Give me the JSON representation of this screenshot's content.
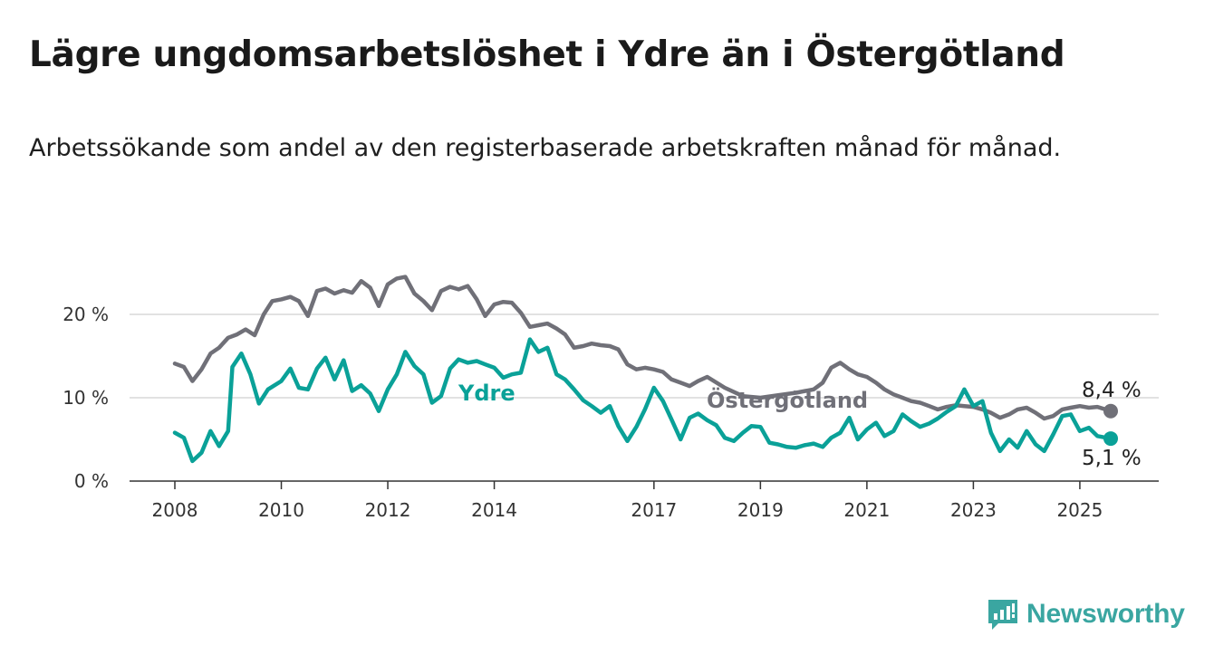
{
  "header": {
    "title": "Lägre ungdomsarbetslöshet i Ydre än i Östergötland",
    "subtitle": "Arbetssökande som andel av den registerbaserade arbetskraften månad för månad."
  },
  "brand": {
    "name": "Newsworthy",
    "color": "#3aa6a1",
    "icon": "newsworthy-logo-icon"
  },
  "colors": {
    "ydre": "#0aa198",
    "ostergotland": "#707078",
    "grid": "#d9d9d9",
    "axis": "#333333"
  },
  "chart_data": {
    "type": "line",
    "title": "Lägre ungdomsarbetslöshet i Ydre än i Östergötland",
    "subtitle": "Arbetssökande som andel av den registerbaserade arbetskraften månad för månad.",
    "xlabel": "",
    "ylabel": "",
    "x_range": [
      2008.0,
      2025.58
    ],
    "ylim": [
      0,
      24
    ],
    "y_ticks": [
      0,
      10,
      20
    ],
    "y_tick_labels": [
      "0 %",
      "10 %",
      "20 %"
    ],
    "x_ticks": [
      2008,
      2010,
      2012,
      2014,
      2017,
      2019,
      2021,
      2023,
      2025
    ],
    "x_tick_labels": [
      "2008",
      "2010",
      "2012",
      "2014",
      "2017",
      "2019",
      "2021",
      "2023",
      "2025"
    ],
    "grid": "horizontal",
    "legend": "direct labels on lines",
    "series": [
      {
        "name": "Östergötland",
        "color": "#707078",
        "end_label": "8,4 %",
        "points": [
          [
            2008.0,
            14.1
          ],
          [
            2008.17,
            13.7
          ],
          [
            2008.33,
            12.0
          ],
          [
            2008.5,
            13.4
          ],
          [
            2008.67,
            15.3
          ],
          [
            2008.83,
            16.0
          ],
          [
            2009.0,
            17.2
          ],
          [
            2009.17,
            17.6
          ],
          [
            2009.33,
            18.2
          ],
          [
            2009.5,
            17.5
          ],
          [
            2009.67,
            20.0
          ],
          [
            2009.83,
            21.6
          ],
          [
            2010.0,
            21.8
          ],
          [
            2010.17,
            22.1
          ],
          [
            2010.33,
            21.6
          ],
          [
            2010.5,
            19.8
          ],
          [
            2010.67,
            22.8
          ],
          [
            2010.83,
            23.1
          ],
          [
            2011.0,
            22.5
          ],
          [
            2011.17,
            22.9
          ],
          [
            2011.33,
            22.6
          ],
          [
            2011.5,
            24.0
          ],
          [
            2011.67,
            23.2
          ],
          [
            2011.83,
            21.0
          ],
          [
            2012.0,
            23.6
          ],
          [
            2012.17,
            24.3
          ],
          [
            2012.33,
            24.5
          ],
          [
            2012.5,
            22.5
          ],
          [
            2012.67,
            21.6
          ],
          [
            2012.83,
            20.5
          ],
          [
            2013.0,
            22.8
          ],
          [
            2013.17,
            23.3
          ],
          [
            2013.33,
            23.0
          ],
          [
            2013.5,
            23.4
          ],
          [
            2013.67,
            21.8
          ],
          [
            2013.83,
            19.8
          ],
          [
            2014.0,
            21.2
          ],
          [
            2014.17,
            21.5
          ],
          [
            2014.33,
            21.4
          ],
          [
            2014.5,
            20.2
          ],
          [
            2014.67,
            18.5
          ],
          [
            2014.83,
            18.7
          ],
          [
            2015.0,
            18.9
          ],
          [
            2015.17,
            18.3
          ],
          [
            2015.33,
            17.6
          ],
          [
            2015.5,
            16.0
          ],
          [
            2015.67,
            16.2
          ],
          [
            2015.83,
            16.5
          ],
          [
            2016.0,
            16.3
          ],
          [
            2016.17,
            16.2
          ],
          [
            2016.33,
            15.8
          ],
          [
            2016.5,
            14.0
          ],
          [
            2016.67,
            13.4
          ],
          [
            2016.83,
            13.6
          ],
          [
            2017.0,
            13.4
          ],
          [
            2017.17,
            13.1
          ],
          [
            2017.33,
            12.2
          ],
          [
            2017.5,
            11.8
          ],
          [
            2017.67,
            11.4
          ],
          [
            2017.83,
            12.0
          ],
          [
            2018.0,
            12.5
          ],
          [
            2018.33,
            11.2
          ],
          [
            2018.67,
            10.2
          ],
          [
            2019.0,
            10.0
          ],
          [
            2019.33,
            10.3
          ],
          [
            2019.67,
            10.6
          ],
          [
            2020.0,
            11.0
          ],
          [
            2020.17,
            11.8
          ],
          [
            2020.33,
            13.6
          ],
          [
            2020.5,
            14.2
          ],
          [
            2020.67,
            13.4
          ],
          [
            2020.83,
            12.8
          ],
          [
            2021.0,
            12.5
          ],
          [
            2021.17,
            11.8
          ],
          [
            2021.33,
            11.0
          ],
          [
            2021.5,
            10.4
          ],
          [
            2021.67,
            10.0
          ],
          [
            2021.83,
            9.6
          ],
          [
            2022.0,
            9.4
          ],
          [
            2022.17,
            9.0
          ],
          [
            2022.33,
            8.6
          ],
          [
            2022.5,
            8.9
          ],
          [
            2022.67,
            9.1
          ],
          [
            2022.83,
            9.0
          ],
          [
            2023.0,
            8.9
          ],
          [
            2023.17,
            8.6
          ],
          [
            2023.33,
            8.2
          ],
          [
            2023.5,
            7.6
          ],
          [
            2023.67,
            8.0
          ],
          [
            2023.83,
            8.6
          ],
          [
            2024.0,
            8.8
          ],
          [
            2024.17,
            8.2
          ],
          [
            2024.33,
            7.5
          ],
          [
            2024.5,
            7.8
          ],
          [
            2024.67,
            8.6
          ],
          [
            2024.83,
            8.8
          ],
          [
            2025.0,
            9.0
          ],
          [
            2025.17,
            8.8
          ],
          [
            2025.33,
            8.9
          ],
          [
            2025.58,
            8.4
          ]
        ]
      },
      {
        "name": "Ydre",
        "color": "#0aa198",
        "end_label": "5,1 %",
        "points": [
          [
            2008.0,
            5.8
          ],
          [
            2008.17,
            5.2
          ],
          [
            2008.33,
            2.4
          ],
          [
            2008.5,
            3.4
          ],
          [
            2008.67,
            6.0
          ],
          [
            2008.83,
            4.2
          ],
          [
            2009.0,
            6.0
          ],
          [
            2009.08,
            13.7
          ],
          [
            2009.25,
            15.3
          ],
          [
            2009.42,
            12.8
          ],
          [
            2009.58,
            9.3
          ],
          [
            2009.75,
            11.0
          ],
          [
            2010.0,
            12.0
          ],
          [
            2010.17,
            13.5
          ],
          [
            2010.33,
            11.2
          ],
          [
            2010.5,
            11.0
          ],
          [
            2010.67,
            13.5
          ],
          [
            2010.83,
            14.8
          ],
          [
            2011.0,
            12.2
          ],
          [
            2011.17,
            14.5
          ],
          [
            2011.33,
            10.8
          ],
          [
            2011.5,
            11.5
          ],
          [
            2011.67,
            10.5
          ],
          [
            2011.83,
            8.4
          ],
          [
            2012.0,
            11.0
          ],
          [
            2012.17,
            12.8
          ],
          [
            2012.33,
            15.5
          ],
          [
            2012.5,
            13.8
          ],
          [
            2012.67,
            12.8
          ],
          [
            2012.83,
            9.4
          ],
          [
            2013.0,
            10.2
          ],
          [
            2013.17,
            13.5
          ],
          [
            2013.33,
            14.6
          ],
          [
            2013.5,
            14.2
          ],
          [
            2013.67,
            14.4
          ],
          [
            2013.83,
            14.0
          ],
          [
            2014.0,
            13.6
          ],
          [
            2014.17,
            12.4
          ],
          [
            2014.33,
            12.8
          ],
          [
            2014.5,
            13.0
          ],
          [
            2014.67,
            17.0
          ],
          [
            2014.83,
            15.5
          ],
          [
            2015.0,
            16.0
          ],
          [
            2015.17,
            12.8
          ],
          [
            2015.33,
            12.2
          ],
          [
            2015.5,
            11.0
          ],
          [
            2015.67,
            9.7
          ],
          [
            2015.83,
            9.0
          ],
          [
            2016.0,
            8.2
          ],
          [
            2016.17,
            9.0
          ],
          [
            2016.33,
            6.6
          ],
          [
            2016.5,
            4.8
          ],
          [
            2016.67,
            6.5
          ],
          [
            2016.83,
            8.6
          ],
          [
            2017.0,
            11.2
          ],
          [
            2017.17,
            9.6
          ],
          [
            2017.33,
            7.4
          ],
          [
            2017.5,
            5.0
          ],
          [
            2017.67,
            7.6
          ],
          [
            2017.83,
            8.1
          ],
          [
            2018.0,
            7.3
          ],
          [
            2018.17,
            6.7
          ],
          [
            2018.33,
            5.2
          ],
          [
            2018.5,
            4.8
          ],
          [
            2018.67,
            5.8
          ],
          [
            2018.83,
            6.6
          ],
          [
            2019.0,
            6.5
          ],
          [
            2019.17,
            4.6
          ],
          [
            2019.33,
            4.4
          ],
          [
            2019.5,
            4.1
          ],
          [
            2019.67,
            4.0
          ],
          [
            2019.83,
            4.3
          ],
          [
            2020.0,
            4.5
          ],
          [
            2020.17,
            4.1
          ],
          [
            2020.33,
            5.2
          ],
          [
            2020.5,
            5.8
          ],
          [
            2020.67,
            7.6
          ],
          [
            2020.83,
            5.0
          ],
          [
            2021.0,
            6.2
          ],
          [
            2021.17,
            7.0
          ],
          [
            2021.33,
            5.4
          ],
          [
            2021.5,
            6.0
          ],
          [
            2021.67,
            8.0
          ],
          [
            2021.83,
            7.2
          ],
          [
            2022.0,
            6.5
          ],
          [
            2022.17,
            6.9
          ],
          [
            2022.33,
            7.5
          ],
          [
            2022.5,
            8.3
          ],
          [
            2022.67,
            9.0
          ],
          [
            2022.83,
            11.0
          ],
          [
            2023.0,
            9.0
          ],
          [
            2023.17,
            9.6
          ],
          [
            2023.33,
            5.8
          ],
          [
            2023.5,
            3.6
          ],
          [
            2023.67,
            5.0
          ],
          [
            2023.83,
            4.0
          ],
          [
            2024.0,
            6.0
          ],
          [
            2024.17,
            4.4
          ],
          [
            2024.33,
            3.6
          ],
          [
            2024.5,
            5.6
          ],
          [
            2024.67,
            7.8
          ],
          [
            2024.83,
            8.0
          ],
          [
            2025.0,
            6.0
          ],
          [
            2025.17,
            6.4
          ],
          [
            2025.33,
            5.4
          ],
          [
            2025.58,
            5.1
          ]
        ]
      }
    ]
  }
}
